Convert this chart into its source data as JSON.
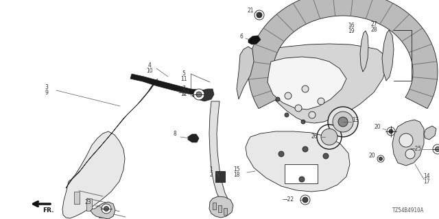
{
  "bg_color": "#ffffff",
  "diagram_code": "TZ54B4910A",
  "line_color": "#1a1a1a",
  "label_color": "#333333",
  "label_fontsize": 5.5,
  "code_fontsize": 5.5,
  "figsize": [
    6.4,
    3.2
  ],
  "dpi": 100
}
